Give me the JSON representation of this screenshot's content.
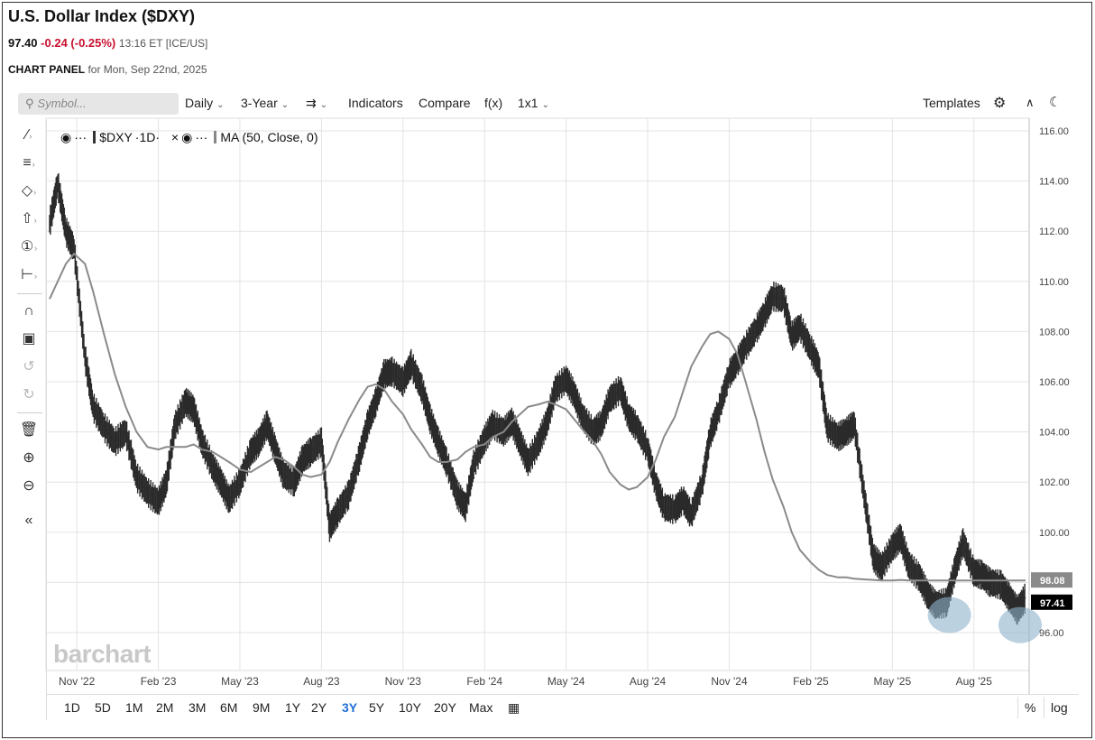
{
  "header": {
    "title": "U.S. Dollar Index ($DXY)",
    "last": "97.40",
    "change": "-0.24 (-0.25%)",
    "time": "13:16 ET [ICE/US]",
    "panel_label": "CHART PANEL",
    "panel_date": "for Mon, Sep 22nd, 2025"
  },
  "toolbar": {
    "search_placeholder": "Symbol...",
    "interval": "Daily",
    "period": "3-Year",
    "indicators": "Indicators",
    "compare": "Compare",
    "fx": "f(x)",
    "layout": "1x1",
    "templates": "Templates"
  },
  "legend": {
    "symbol": "$DXY",
    "interval": "·1D·",
    "study": "MA (50, Close, 0)"
  },
  "watermark": "barchart",
  "footer": {
    "ranges": [
      "1D",
      "5D",
      "1M",
      "2M",
      "3M",
      "6M",
      "9M",
      "1Y",
      "2Y",
      "3Y",
      "5Y",
      "10Y",
      "20Y",
      "Max"
    ],
    "active_range": "3Y",
    "percent": "%",
    "log": "log"
  },
  "colors": {
    "price": "#2b2b2b",
    "ma": "#8a8a8a",
    "change_negative": "#c8102e",
    "active_range": "#1f6fd6",
    "highlight": "#8fb3cc"
  },
  "chart_data": {
    "type": "line",
    "ylim": [
      94.6,
      116.0
    ],
    "yticks": [
      "116.00",
      "114.00",
      "112.00",
      "110.00",
      "108.00",
      "106.00",
      "104.00",
      "102.00",
      "100.00",
      "98.00",
      "96.00"
    ],
    "xticks": [
      "Nov '22",
      "Feb '23",
      "May '23",
      "Aug '23",
      "Nov '23",
      "Feb '24",
      "May '24",
      "Aug '24",
      "Nov '24",
      "Feb '25",
      "May '25",
      "Aug '25"
    ],
    "xtick_months": [
      1,
      4,
      7,
      10,
      13,
      16,
      19,
      22,
      25,
      28,
      31,
      34
    ],
    "x_months": [
      0.0,
      0.3,
      0.6,
      0.9,
      1.3,
      1.6,
      2.0,
      2.4,
      2.8,
      3.2,
      3.6,
      4.0,
      4.3,
      4.6,
      5.0,
      5.3,
      5.6,
      6.0,
      6.3,
      6.6,
      7.0,
      7.4,
      7.7,
      8.0,
      8.3,
      8.6,
      9.0,
      9.3,
      9.6,
      10.0,
      10.3,
      10.6,
      11.0,
      11.4,
      11.7,
      12.0,
      12.3,
      12.6,
      13.0,
      13.3,
      13.7,
      14.0,
      14.3,
      14.6,
      15.0,
      15.3,
      15.6,
      16.0,
      16.3,
      16.7,
      17.0,
      17.3,
      17.6,
      18.0,
      18.3,
      18.6,
      19.0,
      19.3,
      19.6,
      20.0,
      20.3,
      20.6,
      21.0,
      21.3,
      21.6,
      22.0,
      22.3,
      22.6,
      23.0,
      23.3,
      23.6,
      24.0,
      24.3,
      24.6,
      25.0,
      25.3,
      25.6,
      26.0,
      26.3,
      26.6,
      27.0,
      27.3,
      27.6,
      28.0,
      28.3,
      28.6,
      29.0,
      29.3,
      29.6,
      30.0,
      30.3,
      30.6,
      31.0,
      31.3,
      31.6,
      32.0,
      32.3,
      32.6,
      33.0,
      33.3,
      33.6,
      34.0,
      34.3,
      34.6,
      35.0,
      35.3,
      35.6,
      35.9
    ],
    "series": [
      {
        "values": [
          112.3,
          113.9,
          112.0,
          111.3,
          107.0,
          105.0,
          104.2,
          103.6,
          104.0,
          102.2,
          101.6,
          101.2,
          102.0,
          104.2,
          105.2,
          104.9,
          103.6,
          102.6,
          102.0,
          101.3,
          102.0,
          103.2,
          103.6,
          104.3,
          103.3,
          102.3,
          102.0,
          102.9,
          103.2,
          103.6,
          100.2,
          100.8,
          101.5,
          103.0,
          104.3,
          105.2,
          106.3,
          106.4,
          106.0,
          106.7,
          105.7,
          104.5,
          103.6,
          102.8,
          101.5,
          101.0,
          102.7,
          103.7,
          104.3,
          104.0,
          104.4,
          103.6,
          102.8,
          103.6,
          104.4,
          105.7,
          106.1,
          105.5,
          104.6,
          104.0,
          104.3,
          105.3,
          105.7,
          104.6,
          104.2,
          103.3,
          101.9,
          101.0,
          100.9,
          101.3,
          100.7,
          101.9,
          103.9,
          104.8,
          106.3,
          106.8,
          107.4,
          108.1,
          108.7,
          109.4,
          109.3,
          107.8,
          108.2,
          107.3,
          106.6,
          104.2,
          103.8,
          104.0,
          104.3,
          101.2,
          99.0,
          98.6,
          99.4,
          99.8,
          98.7,
          98.2,
          97.5,
          97.1,
          97.2,
          98.5,
          99.6,
          98.4,
          98.3,
          98.0,
          97.9,
          97.4,
          96.9,
          97.4
        ],
        "color": "#2b2b2b"
      },
      {
        "name": "MA (50, Close, 0)",
        "values": [
          109.3,
          110.0,
          110.7,
          111.1,
          110.7,
          109.6,
          107.9,
          106.3,
          105.0,
          104.0,
          103.4,
          103.3,
          103.4,
          103.4,
          103.4,
          103.5,
          103.3,
          103.2,
          103.0,
          102.8,
          102.5,
          102.4,
          102.6,
          102.8,
          103.0,
          102.9,
          102.6,
          102.3,
          102.2,
          102.3,
          102.8,
          103.6,
          104.5,
          105.3,
          105.8,
          105.9,
          105.7,
          105.2,
          104.7,
          104.1,
          103.5,
          103.0,
          102.8,
          102.8,
          102.9,
          103.2,
          103.4,
          103.5,
          103.8,
          104.0,
          104.4,
          104.7,
          105.0,
          105.1,
          105.2,
          105.1,
          104.9,
          104.5,
          104.1,
          103.6,
          103.1,
          102.4,
          101.9,
          101.7,
          101.8,
          102.2,
          102.9,
          103.8,
          104.6,
          105.6,
          106.6,
          107.4,
          107.9,
          108.0,
          107.7,
          107.1,
          106.0,
          104.5,
          103.2,
          102.1,
          101.0,
          100.0,
          99.3,
          98.8,
          98.5,
          98.3,
          98.2,
          98.2,
          98.15,
          98.12,
          98.1,
          98.08,
          98.08,
          98.1,
          98.08,
          98.08,
          98.08,
          98.08,
          98.08,
          98.08,
          98.08,
          98.08,
          98.08,
          98.08,
          98.08,
          98.08,
          98.08,
          98.08
        ],
        "color": "#8a8a8a"
      }
    ],
    "last_price_label": "97.41",
    "ma_label": "98.08",
    "highlights": [
      {
        "x_month": 33.1,
        "y": 96.7
      },
      {
        "x_month": 35.7,
        "y": 96.3
      }
    ],
    "grid": true
  }
}
